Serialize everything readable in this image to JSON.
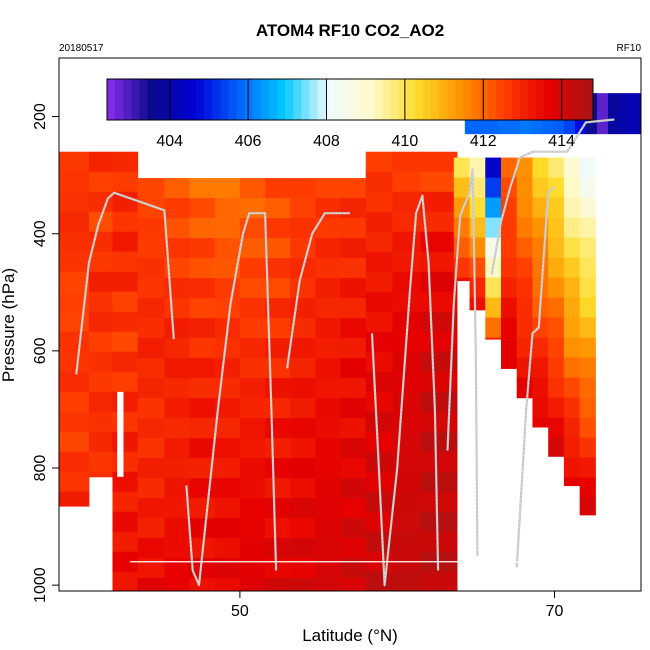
{
  "chart_data": {
    "type": "heatmap",
    "title": "ATOM4 RF10 CO2_AO2",
    "date_label": "20180517",
    "flight_label": "RF10",
    "xlabel": "Latitude (°N)",
    "ylabel": "Pressure (hPa)",
    "xlim": [
      38.5,
      75.5
    ],
    "ylim": [
      1010,
      100
    ],
    "xticks": [
      50,
      70
    ],
    "yticks": [
      200,
      400,
      600,
      800,
      1000
    ],
    "colorbar": {
      "range": [
        402.4,
        414.8
      ],
      "ticks": [
        404,
        406,
        408,
        410,
        412,
        414
      ],
      "colors": [
        "#8c2ff0",
        "#0a0a8c",
        "#0000d8",
        "#0064ff",
        "#00c8ff",
        "#f0faff",
        "#fffacc",
        "#ffdc2a",
        "#ff9400",
        "#ff3c00",
        "#e60000",
        "#a81515"
      ]
    },
    "column_values": [
      [
        39.6,
        260,
        865,
        [
          412.6,
          412.9,
          412.4,
          412.8,
          412.5,
          413.0
        ]
      ],
      [
        41.2,
        260,
        815,
        [
          412.8,
          412.5,
          413.0,
          412.6,
          412.9,
          412.7
        ]
      ],
      [
        42.6,
        260,
        1010,
        [
          412.7,
          413.0,
          412.6,
          412.9,
          413.2,
          413.5
        ]
      ],
      [
        44.4,
        305,
        1010,
        [
          412.4,
          412.7,
          413.0,
          412.8,
          413.1,
          413.6
        ]
      ],
      [
        46.0,
        305,
        1010,
        [
          412.3,
          412.6,
          413.1,
          413.0,
          413.3,
          413.7
        ]
      ],
      [
        47.6,
        305,
        1010,
        [
          412.0,
          412.5,
          412.9,
          413.2,
          413.4,
          413.6
        ]
      ],
      [
        49.2,
        305,
        1010,
        [
          411.8,
          412.3,
          412.9,
          413.1,
          413.5,
          413.7
        ]
      ],
      [
        50.8,
        305,
        1010,
        [
          412.0,
          412.4,
          412.8,
          413.2,
          413.6,
          413.8
        ]
      ],
      [
        52.4,
        305,
        1010,
        [
          412.3,
          412.5,
          412.9,
          413.3,
          413.5,
          413.9
        ]
      ],
      [
        54.0,
        305,
        1010,
        [
          412.5,
          412.8,
          413.1,
          413.4,
          413.7,
          413.9
        ]
      ],
      [
        55.6,
        305,
        1010,
        [
          412.6,
          412.9,
          413.2,
          413.5,
          413.8,
          414.0
        ]
      ],
      [
        57.2,
        305,
        1010,
        [
          412.7,
          413.0,
          413.4,
          413.6,
          413.9,
          414.1
        ]
      ],
      [
        58.8,
        260,
        1010,
        [
          412.6,
          413.1,
          413.5,
          413.8,
          414.0,
          414.2
        ]
      ],
      [
        60.6,
        260,
        1010,
        [
          412.5,
          413.2,
          413.7,
          413.9,
          414.1,
          414.3
        ]
      ],
      [
        62.4,
        260,
        1010,
        [
          412.4,
          413.4,
          413.9,
          414.2,
          414.3,
          414.4
        ]
      ]
    ],
    "upper_layer": {
      "lat_range": [
        64.3,
        75.5
      ],
      "pressure_range": [
        160,
        230
      ],
      "values": [
        405.8,
        405.8,
        405.8,
        405.9,
        405.9,
        406.0,
        405.9,
        405.8,
        405.7,
        405.4,
        404.8,
        403.5,
        402.8,
        403.8,
        404.0,
        404.1
      ]
    },
    "boundary_values": [
      410.0,
      409.2,
      404.6,
      412.0,
      411.3,
      410.5,
      409.8,
      408.9,
      408.3
    ],
    "flight_track": [
      [
        [
          39.6,
          640
        ],
        [
          40.4,
          450
        ],
        [
          41.0,
          385
        ],
        [
          41.6,
          340
        ],
        [
          42.0,
          330
        ],
        [
          45.2,
          360
        ],
        [
          45.8,
          580
        ]
      ],
      [
        [
          46.6,
          830
        ],
        [
          47.0,
          975
        ],
        [
          47.4,
          1000
        ],
        [
          48.6,
          700
        ],
        [
          49.4,
          520
        ],
        [
          50.2,
          400
        ],
        [
          50.6,
          365
        ],
        [
          51.6,
          365
        ],
        [
          52.0,
          700
        ],
        [
          52.3,
          975
        ]
      ],
      [
        [
          53.0,
          630
        ],
        [
          53.8,
          480
        ],
        [
          54.6,
          400
        ],
        [
          55.4,
          365
        ],
        [
          57.0,
          365
        ]
      ],
      [
        [
          58.4,
          570
        ],
        [
          58.8,
          780
        ],
        [
          59.2,
          1000
        ],
        [
          60.0,
          800
        ],
        [
          60.8,
          500
        ],
        [
          61.2,
          365
        ],
        [
          61.6,
          335
        ],
        [
          62.0,
          450
        ],
        [
          62.4,
          700
        ],
        [
          62.6,
          975
        ]
      ],
      [
        [
          63.2,
          770
        ],
        [
          63.6,
          520
        ],
        [
          64.0,
          370
        ],
        [
          64.6,
          330
        ],
        [
          64.8,
          290
        ],
        [
          65.0,
          600
        ],
        [
          65.1,
          950
        ]
      ],
      [
        [
          66.0,
          470
        ],
        [
          66.6,
          380
        ],
        [
          67.2,
          320
        ],
        [
          67.8,
          270
        ],
        [
          68.6,
          260
        ],
        [
          69.8,
          260
        ],
        [
          70.8,
          260
        ],
        [
          72.0,
          210
        ],
        [
          73.8,
          205
        ]
      ],
      [
        [
          67.6,
          970
        ],
        [
          67.8,
          880
        ],
        [
          68.2,
          700
        ],
        [
          68.6,
          570
        ],
        [
          69.0,
          560
        ],
        [
          69.6,
          330
        ],
        [
          70.0,
          320
        ]
      ]
    ],
    "reference_line_pressure": 960,
    "reference_line_lat_range": [
      43.0,
      71.0
    ],
    "legend": "top-center"
  }
}
